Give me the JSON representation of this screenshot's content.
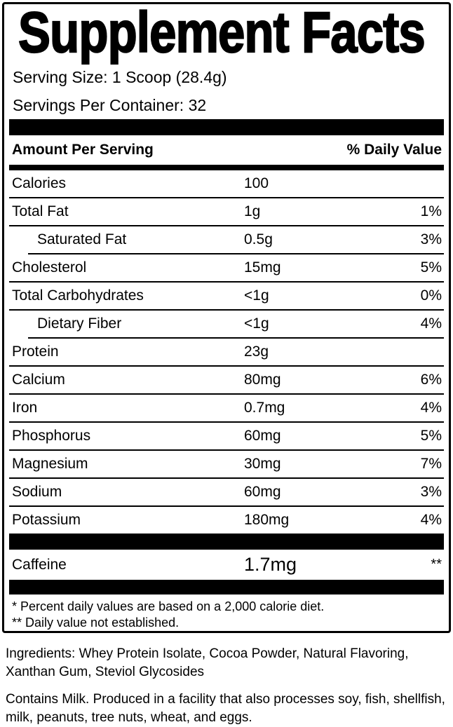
{
  "panel": {
    "title": "Supplement Facts",
    "serving_size": "Serving Size: 1 Scoop (28.4g)",
    "servings_per_container": "Servings Per Container: 32",
    "columns": {
      "amount": "Amount Per Serving",
      "daily_value": "% Daily Value"
    },
    "rows": [
      {
        "name": "Calories",
        "amount": "100",
        "dv": "",
        "indent": false
      },
      {
        "name": "Total Fat",
        "amount": "1g",
        "dv": "1%",
        "indent": false
      },
      {
        "name": "Saturated Fat",
        "amount": "0.5g",
        "dv": "3%",
        "indent": true
      },
      {
        "name": "Cholesterol",
        "amount": "15mg",
        "dv": "5%",
        "indent": false
      },
      {
        "name": "Total Carbohydrates",
        "amount": "<1g",
        "dv": "0%",
        "indent": false
      },
      {
        "name": "Dietary Fiber",
        "amount": "<1g",
        "dv": "4%",
        "indent": true
      },
      {
        "name": "Protein",
        "amount": "23g",
        "dv": "",
        "indent": false
      },
      {
        "name": "Calcium",
        "amount": "80mg",
        "dv": "6%",
        "indent": false
      },
      {
        "name": "Iron",
        "amount": "0.7mg",
        "dv": "4%",
        "indent": false
      },
      {
        "name": "Phosphorus",
        "amount": "60mg",
        "dv": "5%",
        "indent": false
      },
      {
        "name": "Magnesium",
        "amount": "30mg",
        "dv": "7%",
        "indent": false
      },
      {
        "name": "Sodium",
        "amount": "60mg",
        "dv": "3%",
        "indent": false
      },
      {
        "name": "Potassium",
        "amount": "180mg",
        "dv": "4%",
        "indent": false
      }
    ],
    "caffeine": {
      "name": "Caffeine",
      "amount": "1.7mg",
      "dv": "**"
    },
    "footnotes": [
      "* Percent daily values are based on a 2,000 calorie diet.",
      "** Daily value not established."
    ]
  },
  "supplemental": {
    "ingredients": "Ingredients: Whey Protein Isolate, Cocoa Powder, Natural Flavoring, Xanthan Gum, Steviol Glycosides",
    "allergen": "Contains Milk. Produced in a facility that also processes soy, fish, shellfish, milk, peanuts, tree nuts, wheat, and eggs."
  },
  "colors": {
    "ink": "#000000",
    "paper": "#ffffff"
  }
}
